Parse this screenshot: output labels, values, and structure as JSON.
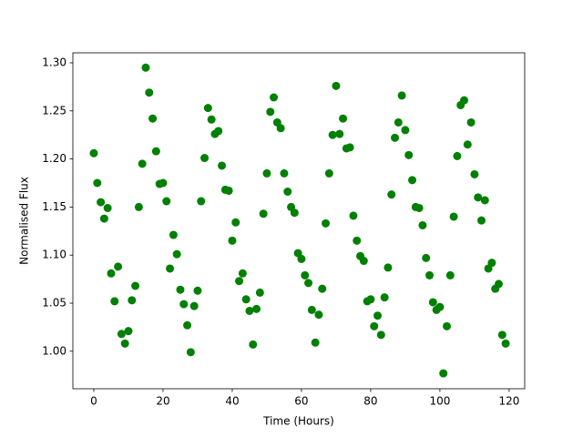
{
  "chart_data": {
    "type": "scatter",
    "xlabel": "Time (Hours)",
    "ylabel": "Normalised Flux",
    "color": "#008000",
    "x": [
      0,
      1,
      2,
      3,
      4,
      5,
      6,
      7,
      8,
      9,
      10,
      11,
      12,
      13,
      14,
      15,
      16,
      17,
      18,
      19,
      20,
      21,
      22,
      23,
      24,
      25,
      26,
      27,
      28,
      29,
      30,
      31,
      32,
      33,
      34,
      35,
      36,
      37,
      38,
      39,
      40,
      41,
      42,
      43,
      44,
      45,
      46,
      47,
      48,
      49,
      50,
      51,
      52,
      53,
      54,
      55,
      56,
      57,
      58,
      59,
      60,
      61,
      62,
      63,
      64,
      65,
      66,
      67,
      68,
      69,
      70,
      71,
      72,
      73,
      74,
      75,
      76,
      77,
      78,
      79,
      80,
      81,
      82,
      83,
      84,
      85,
      86,
      87,
      88,
      89,
      90,
      91,
      92,
      93,
      94,
      95,
      96,
      97,
      98,
      99,
      100,
      101,
      102,
      103,
      104,
      105,
      106,
      107,
      108,
      109,
      110,
      111,
      112,
      113,
      114,
      115,
      116,
      117,
      118,
      119
    ],
    "values": [
      1.206,
      1.175,
      1.155,
      1.138,
      1.149,
      1.081,
      1.052,
      1.088,
      1.018,
      1.008,
      1.021,
      1.053,
      1.068,
      1.15,
      1.195,
      1.295,
      1.269,
      1.242,
      1.208,
      1.174,
      1.175,
      1.156,
      1.086,
      1.121,
      1.101,
      1.064,
      1.049,
      1.027,
      0.999,
      1.047,
      1.063,
      1.156,
      1.201,
      1.253,
      1.241,
      1.226,
      1.229,
      1.193,
      1.168,
      1.167,
      1.115,
      1.134,
      1.073,
      1.081,
      1.054,
      1.042,
      1.007,
      1.044,
      1.061,
      1.143,
      1.185,
      1.249,
      1.264,
      1.238,
      1.232,
      1.185,
      1.166,
      1.15,
      1.144,
      1.102,
      1.096,
      1.079,
      1.071,
      1.043,
      1.009,
      1.038,
      1.065,
      1.133,
      1.185,
      1.225,
      1.276,
      1.226,
      1.242,
      1.211,
      1.212,
      1.141,
      1.115,
      1.099,
      1.094,
      1.052,
      1.054,
      1.026,
      1.037,
      1.017,
      1.056,
      1.087,
      1.163,
      1.222,
      1.238,
      1.266,
      1.23,
      1.204,
      1.178,
      1.15,
      1.149,
      1.131,
      1.097,
      1.079,
      1.051,
      1.043,
      1.046,
      0.977,
      1.026,
      1.079,
      1.14,
      1.203,
      1.256,
      1.261,
      1.215,
      1.238,
      1.184,
      1.16,
      1.136,
      1.157,
      1.086,
      1.092,
      1.065,
      1.07,
      1.017,
      1.008
    ],
    "xlim": [
      -6.05,
      124.5
    ],
    "ylim": [
      0.961,
      1.3104
    ],
    "xticks": [
      0,
      20,
      40,
      60,
      80,
      100,
      120
    ],
    "yticks": [
      {
        "value": 1.0,
        "label": "1.00"
      },
      1.05,
      {
        "value": 1.1,
        "label": "1.10"
      },
      1.15,
      {
        "value": 1.2,
        "label": "1.20"
      },
      1.25,
      {
        "value": 1.3,
        "label": "1.30"
      }
    ]
  }
}
